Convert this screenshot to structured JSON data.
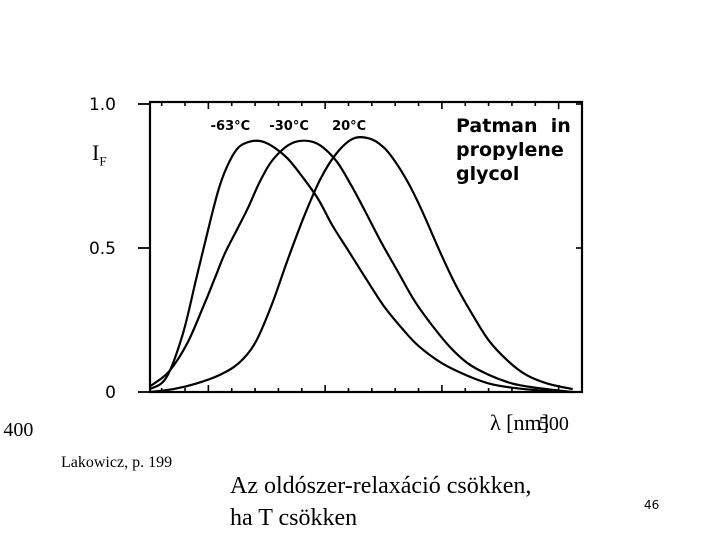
{
  "slide": {
    "source": "Lakowicz, p. 199",
    "caption_line1": "Az oldószer-relaxáció csökken,",
    "caption_line2": "ha T csökken",
    "page_number": "46"
  },
  "chart_data": {
    "type": "line",
    "ylabel_main": "I",
    "ylabel_sub": "F",
    "xlabel": "λ [nm]",
    "annotation": [
      "Patman  in",
      "propylene",
      "glycol"
    ],
    "xlim": [
      375,
      560
    ],
    "ylim": [
      0,
      1.0
    ],
    "x_ticks": [
      {
        "value": 400,
        "label": "400"
      },
      {
        "value": 500,
        "label": "500"
      }
    ],
    "y_ticks": [
      {
        "value": 0,
        "label": "0"
      },
      {
        "value": 0.5,
        "label": "0.5"
      },
      {
        "value": 1.0,
        "label": "1.0"
      }
    ],
    "grid": false,
    "series": [
      {
        "name": "-63°C",
        "x": [
          375,
          382,
          389,
          395,
          401,
          405,
          409,
          413,
          418,
          423,
          428,
          434,
          440,
          447,
          453,
          460,
          467,
          475,
          483,
          490,
          500,
          510,
          520,
          530,
          543,
          556
        ],
        "y": [
          0.01,
          0.05,
          0.2,
          0.4,
          0.6,
          0.72,
          0.8,
          0.85,
          0.87,
          0.87,
          0.85,
          0.81,
          0.75,
          0.67,
          0.58,
          0.49,
          0.4,
          0.3,
          0.22,
          0.16,
          0.1,
          0.06,
          0.03,
          0.015,
          0.005,
          0.0
        ]
      },
      {
        "name": "-30°C",
        "x": [
          375,
          383,
          391,
          398,
          403,
          407,
          412,
          417,
          422,
          427,
          433,
          438,
          444,
          449,
          455,
          461,
          467,
          474,
          481,
          488,
          495,
          503,
          511,
          520,
          530,
          540,
          556
        ],
        "y": [
          0.02,
          0.07,
          0.17,
          0.3,
          0.4,
          0.48,
          0.56,
          0.64,
          0.73,
          0.8,
          0.85,
          0.87,
          0.87,
          0.85,
          0.8,
          0.72,
          0.63,
          0.52,
          0.42,
          0.32,
          0.24,
          0.16,
          0.1,
          0.06,
          0.03,
          0.015,
          0.0
        ]
      },
      {
        "name": "20°C",
        "x": [
          375,
          385,
          395,
          405,
          413,
          420,
          427,
          434,
          441,
          448,
          455,
          462,
          469,
          475,
          480,
          486,
          492,
          499,
          506,
          513,
          520,
          528,
          536,
          545,
          556
        ],
        "y": [
          0.0,
          0.01,
          0.03,
          0.06,
          0.1,
          0.17,
          0.3,
          0.46,
          0.61,
          0.74,
          0.83,
          0.88,
          0.88,
          0.85,
          0.8,
          0.72,
          0.62,
          0.49,
          0.37,
          0.27,
          0.18,
          0.11,
          0.06,
          0.03,
          0.01
        ]
      }
    ]
  }
}
